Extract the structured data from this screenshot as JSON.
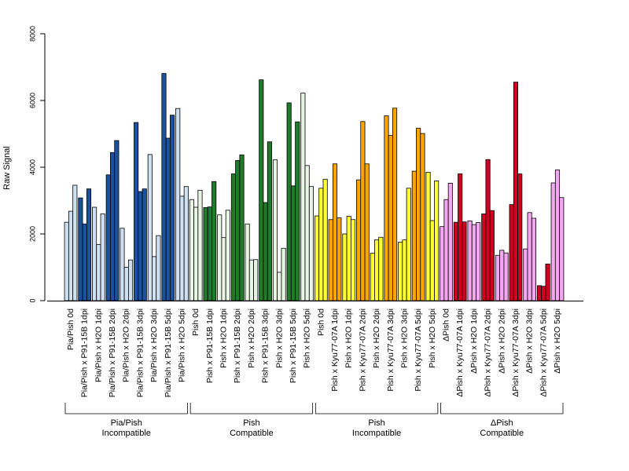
{
  "chart_data": {
    "type": "bar",
    "ylabel": "Raw Signal",
    "xlabel": "",
    "ylim": [
      0,
      8000
    ],
    "yticks": [
      0,
      2000,
      4000,
      6000,
      8000
    ],
    "grid": false,
    "categories": [
      "Pia/Pish 0d",
      "Pia/Pish x P91-15B 1dpi",
      "Pia/Pish x H2O 1dpi",
      "Pia/Pish x P91-15B 2dpi",
      "Pia/Pish x H2O 2dpi",
      "Pia/Pish x P91-15B 3dpi",
      "Pia/Pish x H2O 3dpi",
      "Pia/Pish x P91-15B 5dpi",
      "Pia/Pish x H2O 5dpi",
      "Pish 0d",
      "Pish x P91-15B 1dpi",
      "Pish x H2O 1dpi",
      "Pish x P91-15B 2dpi",
      "Pish x H2O 2dpi",
      "Pish x P91-15B 3dpi",
      "Pish x H2O 3dpi",
      "Pish x P91-15B 5dpi",
      "Pish x H2O 5dpi",
      "Pish 0d",
      "Pish x Kyu77-07A 1dpi",
      "Pish x H2O 1dpi",
      "Pish x Kyu77-07A 2dpi",
      "Pish x H2O 2dpi",
      "Pish x Kyu77-07A 3dpi",
      "Pish x H2O 3dpi",
      "Pish x Kyu77-07A 5dpi",
      "Pish x H2O 5dpi",
      "ΔPish 0d",
      "ΔPish x Kyu77-07A 1dpi",
      "ΔPish x H2O 1dpi",
      "ΔPish x Kyu77-07A 2dpi",
      "ΔPish x H2O 2dpi",
      "ΔPish x Kyu77-07A 3dpi",
      "ΔPish x H2O 3dpi",
      "ΔPish x Kyu77-07A 5dpi",
      "ΔPish x H2O 5dpi"
    ],
    "values": [
      [
        2350,
        2680,
        3460
      ],
      [
        3080,
        2300,
        3350
      ],
      [
        2800,
        1680,
        2600
      ],
      [
        3770,
        4440,
        4800
      ],
      [
        2170,
        1000,
        1220
      ],
      [
        5340,
        3270,
        3350
      ],
      [
        4380,
        1320,
        1950
      ],
      [
        6810,
        4870,
        5560
      ],
      [
        5760,
        3130,
        3420
      ],
      [
        3030,
        2800,
        3310
      ],
      [
        2790,
        2810,
        3570
      ],
      [
        2570,
        1890,
        2710
      ],
      [
        3800,
        4200,
        4370
      ],
      [
        2300,
        1220,
        1230
      ],
      [
        6620,
        2940,
        4760
      ],
      [
        4220,
        850,
        1570
      ],
      [
        5930,
        3440,
        5360
      ],
      [
        6220,
        4050,
        3420
      ],
      [
        2540,
        3370,
        3640
      ],
      [
        2430,
        4100,
        2480
      ],
      [
        2000,
        2530,
        2430
      ],
      [
        3620,
        5370,
        4100
      ],
      [
        1420,
        1820,
        1900
      ],
      [
        5540,
        4950,
        5770
      ],
      [
        1750,
        1820,
        3370
      ],
      [
        3880,
        5170,
        5010
      ],
      [
        3850,
        2400,
        3590
      ],
      [
        2220,
        3030,
        3520
      ],
      [
        2350,
        3800,
        2360
      ],
      [
        2390,
        2280,
        2340
      ],
      [
        2600,
        4230,
        2700
      ],
      [
        1360,
        1510,
        1430
      ],
      [
        2880,
        6550,
        3800
      ],
      [
        1550,
        2640,
        2470
      ],
      [
        450,
        430,
        1100
      ],
      [
        3530,
        3920,
        3090
      ]
    ],
    "colors": [
      "#cfe0f0",
      "#1a52a0",
      "#cfe0f0",
      "#1a52a0",
      "#cfe0f0",
      "#1a52a0",
      "#cfe0f0",
      "#1a52a0",
      "#cfe0f0",
      "#e8f4e4",
      "#1f7a2a",
      "#e8f4e4",
      "#1f7a2a",
      "#e8f4e4",
      "#1f7a2a",
      "#e8f4e4",
      "#1f7a2a",
      "#e8f4e4",
      "#ffff33",
      "#ffa500",
      "#ffff33",
      "#ffa500",
      "#ffff33",
      "#ffa500",
      "#ffff33",
      "#ffa500",
      "#ffff33",
      "#f4a6f0",
      "#d10020",
      "#f4a6f0",
      "#d10020",
      "#f4a6f0",
      "#d10020",
      "#f4a6f0",
      "#d10020",
      "#f4a6f0"
    ],
    "groups": [
      {
        "line1": "Pia/Pish",
        "line2": "Incompatible",
        "start": 0,
        "end": 8
      },
      {
        "line1": "Pish",
        "line2": "Compatible",
        "start": 9,
        "end": 17
      },
      {
        "line1": "Pish",
        "line2": "Incompatible",
        "start": 18,
        "end": 26
      },
      {
        "line1": "ΔPish",
        "line2": "Compatible",
        "start": 27,
        "end": 35
      }
    ]
  }
}
